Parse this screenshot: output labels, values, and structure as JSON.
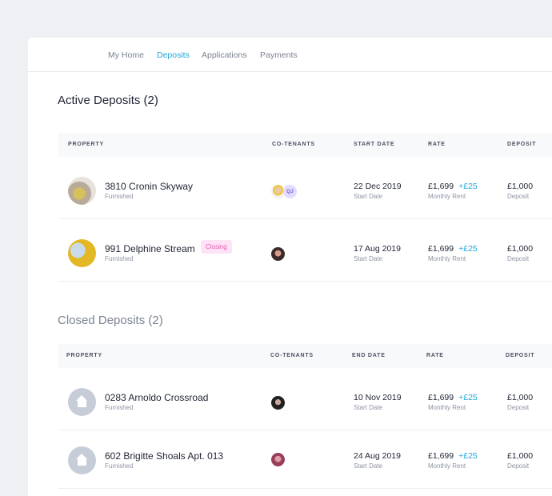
{
  "nav": {
    "items": [
      "My Home",
      "Deposits",
      "Applications",
      "Payments"
    ],
    "active": "Deposits"
  },
  "active": {
    "title": "Active Deposits (2)",
    "headers": [
      "PROPERTY",
      "CO-TENANTS",
      "START DATE",
      "RATE",
      "DEPOSIT"
    ],
    "rows": [
      {
        "name": "3810 Cronin Skyway",
        "type": "Furnished",
        "badge": "",
        "tenant_initials": "QJ",
        "date": "22 Dec 2019",
        "date_label": "Start Date",
        "rate": "£1,699",
        "increase": "+£25",
        "rate_label": "Monthly Rent",
        "deposit": "£1,000",
        "deposit_label": "Deposit"
      },
      {
        "name": "991 Delphine Stream",
        "type": "Furnished",
        "badge": "Closing",
        "date": "17 Aug 2019",
        "date_label": "Start Date",
        "rate": "£1,699",
        "increase": "+£25",
        "rate_label": "Monthly Rent",
        "deposit": "£1,000",
        "deposit_label": "Deposit"
      }
    ]
  },
  "closed": {
    "title": "Closed Deposits (2)",
    "headers": [
      "PROPERTY",
      "CO-TENANTS",
      "END DATE",
      "RATE",
      "DEPOSIT"
    ],
    "rows": [
      {
        "name": "0283 Arnoldo Crossroad",
        "type": "Furnished",
        "date": "10 Nov 2019",
        "date_label": "Start Date",
        "rate": "£1,699",
        "increase": "+£25",
        "rate_label": "Monthly Rent",
        "deposit": "£1,000",
        "deposit_label": "Deposit"
      },
      {
        "name": "602 Brigitte Shoals Apt. 013",
        "type": "Furnished",
        "date": "24 Aug 2019",
        "date_label": "Start Date",
        "rate": "£1,699",
        "increase": "+£25",
        "rate_label": "Monthly Rent",
        "deposit": "£1,000",
        "deposit_label": "Deposit"
      }
    ]
  },
  "colors": {
    "accent": "#1fa6d8",
    "badge": "#e05bb6",
    "background": "#eef0f3"
  }
}
